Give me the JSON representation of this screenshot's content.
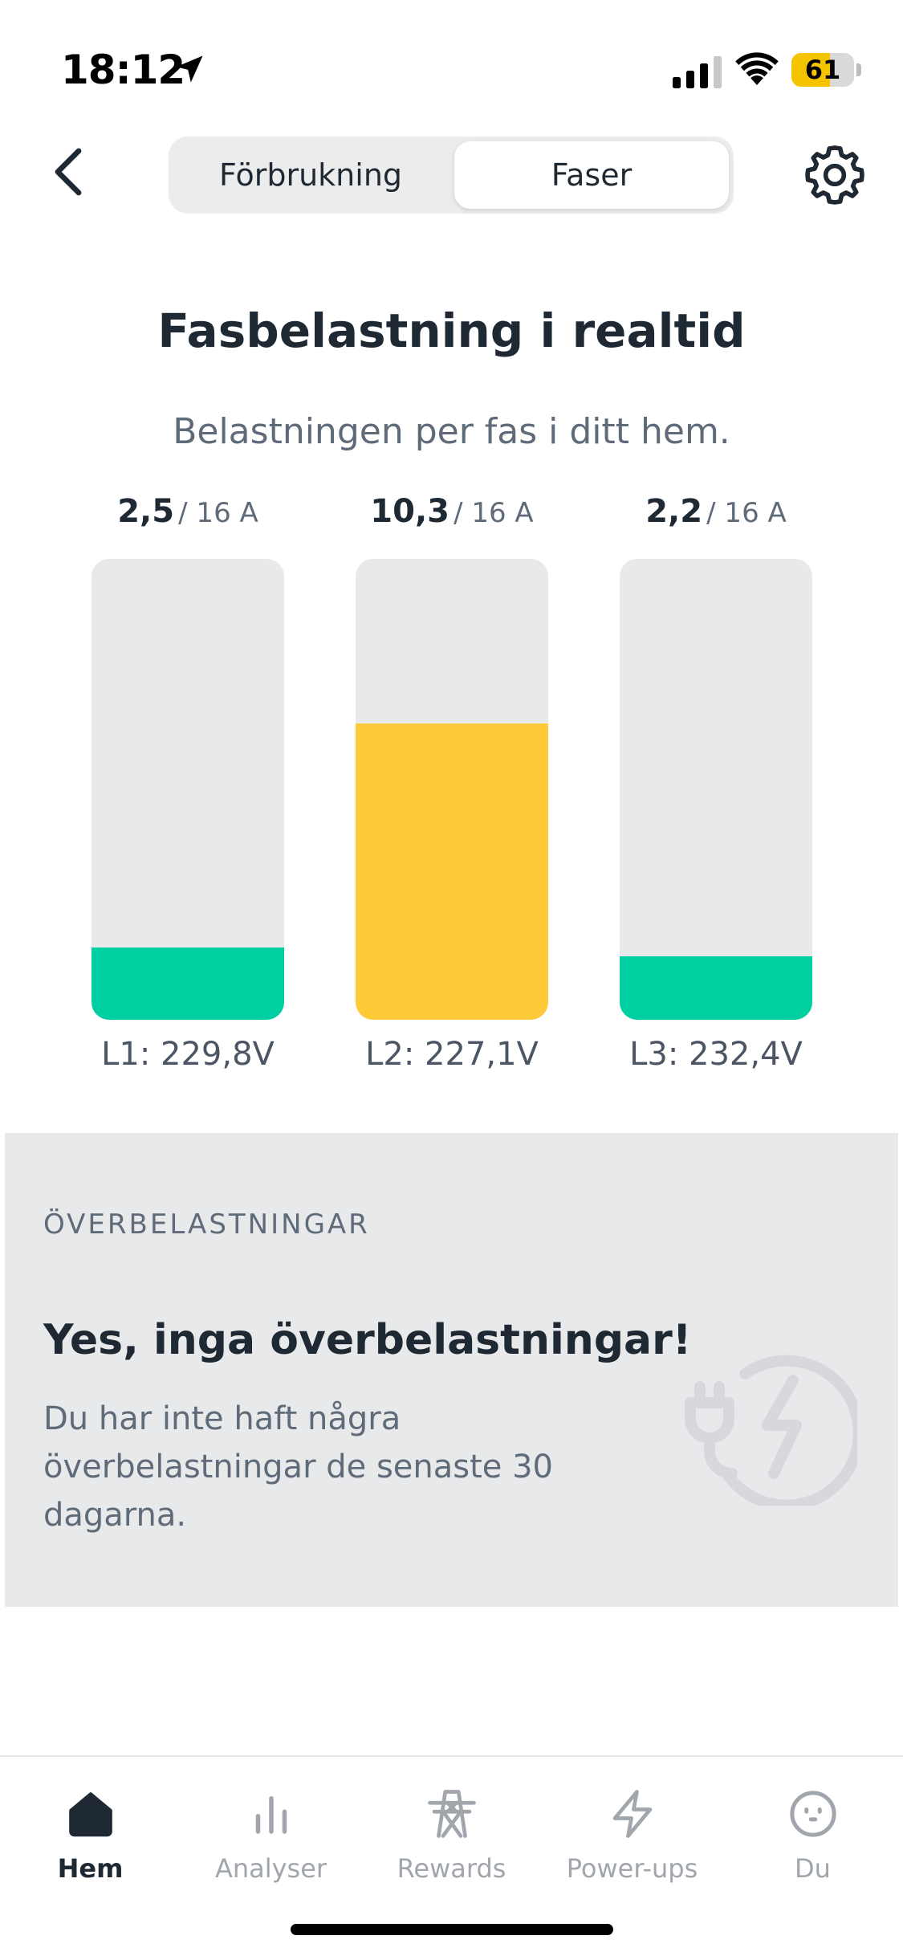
{
  "status_bar": {
    "time": "18:12",
    "battery_level": "61",
    "battery_fraction": 0.61,
    "icons": [
      "location-arrow-icon",
      "signal-icon",
      "wifi-icon",
      "battery-icon"
    ]
  },
  "header": {
    "segments": [
      {
        "label": "Förbrukning",
        "selected": false
      },
      {
        "label": "Faser",
        "selected": true
      }
    ],
    "icons": [
      "chevron-left-icon",
      "gear-icon"
    ]
  },
  "main": {
    "title": "Fasbelastning i realtid",
    "subtitle": "Belastningen per fas i ditt hem.",
    "phases": [
      {
        "current": "2,5",
        "current_value": 2.5,
        "max_label": "/ 16 A",
        "max_value": 16,
        "voltage": "L1: 229,8V",
        "color": "#00CFA2"
      },
      {
        "current": "10,3",
        "current_value": 10.3,
        "max_label": "/ 16 A",
        "max_value": 16,
        "voltage": "L2: 227,1V",
        "color": "#FECA3A"
      },
      {
        "current": "2,2",
        "current_value": 2.2,
        "max_label": "/ 16 A",
        "max_value": 16,
        "voltage": "L3: 232,4V",
        "color": "#00CFA2"
      }
    ]
  },
  "overload": {
    "heading": "ÖVERBELASTNINGAR",
    "title": "Yes, inga överbelastningar!",
    "text": "Du har inte haft några överbelastningar de senaste 30 dagarna.",
    "icon": "plug-lightning-icon"
  },
  "bottom_nav": {
    "items": [
      {
        "label": "Hem",
        "icon": "home-icon",
        "active": true
      },
      {
        "label": "Analyser",
        "icon": "bar-chart-icon",
        "active": false
      },
      {
        "label": "Rewards",
        "icon": "power-tower-icon",
        "active": false
      },
      {
        "label": "Power-ups",
        "icon": "lightning-icon",
        "active": false
      },
      {
        "label": "Du",
        "icon": "face-icon",
        "active": false
      }
    ]
  },
  "colors": {
    "accent_yellow": "#FECA3A",
    "accent_green": "#00CFA2",
    "text_dark": "#1F2933",
    "text_muted": "#5F6B78",
    "card_bg": "#E8E9EB"
  }
}
